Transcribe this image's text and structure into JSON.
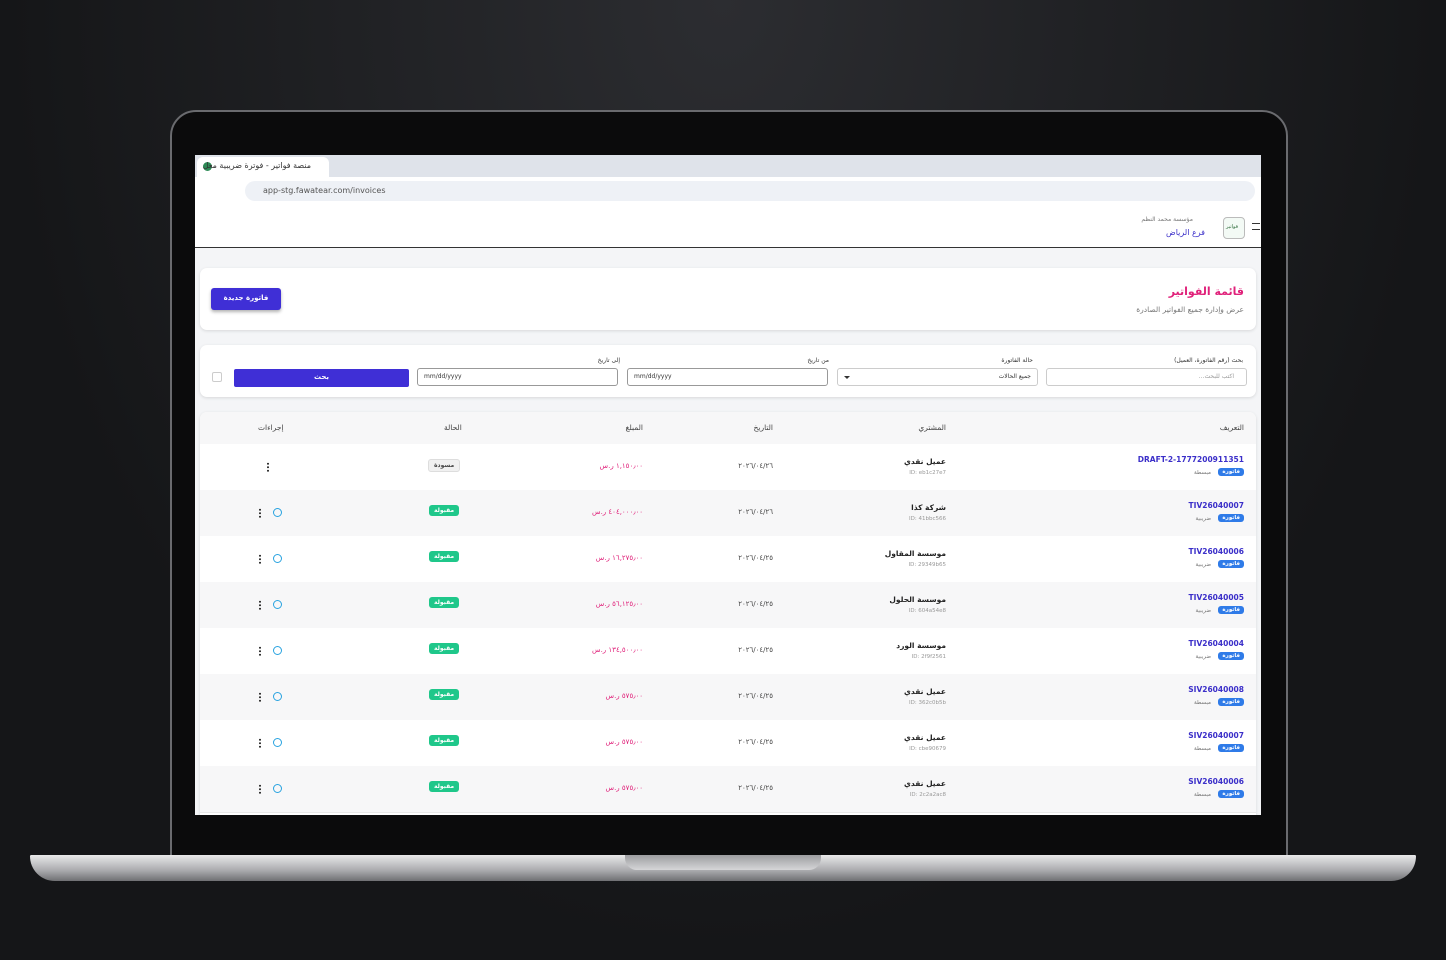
{
  "browser": {
    "tab_title": "منصة فواتير - فوترة ضريبية معل",
    "url": "app-stg.fawatear.com/invoices"
  },
  "header": {
    "logo": "فواتير",
    "company": "مؤسسة محمد النظم",
    "branch": "فرع الرياض"
  },
  "page": {
    "title": "قائمة الفواتير",
    "subtitle": "عرض وإدارة جميع الفواتير الصادرة",
    "new_button": "فاتورة جديدة"
  },
  "filters": {
    "search_label": "بحث (رقم الفاتورة، العميل)",
    "search_placeholder": "اكتب للبحث...",
    "status_label": "حالة الفاتورة",
    "status_value": "جميع الحالات",
    "from_label": "من تاريخ",
    "to_label": "إلى تاريخ",
    "date_placeholder": "mm/dd/yyyy",
    "search_button": "بحث"
  },
  "table": {
    "columns": [
      "التعريف",
      "المشتري",
      "التاريخ",
      "المبلغ",
      "الحالة",
      "إجراءات"
    ],
    "rows": [
      {
        "id": "DRAFT-2-1777200911351",
        "badge": "فاتورة",
        "kind": "مبسطة",
        "buyer": "عميل نقدي",
        "buyer_id": "ID: eb1c27e7",
        "date": "٢٠٢٦/٠٤/٢٦",
        "amount": "١,١٥٠٫٠٠ ر.س",
        "status": "مسودة"
      },
      {
        "id": "TIV26040007",
        "badge": "فاتورة",
        "kind": "ضريبية",
        "buyer": "شركة كذا",
        "buyer_id": "ID: 41bbc566",
        "date": "٢٠٢٦/٠٤/٢٦",
        "amount": "٤٠٤,٠٠٠٫٠٠ ر.س",
        "status": "مقبولة"
      },
      {
        "id": "TIV26040006",
        "badge": "فاتورة",
        "kind": "ضريبية",
        "buyer": "موسسة المقاول",
        "buyer_id": "ID: 29349b65",
        "date": "٢٠٢٦/٠٤/٢٥",
        "amount": "١٦,٢٧٥٫٠٠ ر.س",
        "status": "مقبولة"
      },
      {
        "id": "TIV26040005",
        "badge": "فاتورة",
        "kind": "ضريبية",
        "buyer": "موسسة الحلول",
        "buyer_id": "ID: 604a54e8",
        "date": "٢٠٢٦/٠٤/٢٥",
        "amount": "٥٦,١٢٥٫٠٠ ر.س",
        "status": "مقبولة"
      },
      {
        "id": "TIV26040004",
        "badge": "فاتورة",
        "kind": "ضريبية",
        "buyer": "موسسة الورد",
        "buyer_id": "ID: 2f9f2561",
        "date": "٢٠٢٦/٠٤/٢٥",
        "amount": "١٣٤,٥٠٠٫٠٠ ر.س",
        "status": "مقبولة"
      },
      {
        "id": "SIV26040008",
        "badge": "فاتورة",
        "kind": "مبسطة",
        "buyer": "عميل نقدي",
        "buyer_id": "ID: 362c0b5b",
        "date": "٢٠٢٦/٠٤/٢٥",
        "amount": "٥٧٥٫٠٠ ر.س",
        "status": "مقبولة"
      },
      {
        "id": "SIV26040007",
        "badge": "فاتورة",
        "kind": "مبسطة",
        "buyer": "عميل نقدي",
        "buyer_id": "ID: cbe90679",
        "date": "٢٠٢٦/٠٤/٢٥",
        "amount": "٥٧٥٫٠٠ ر.س",
        "status": "مقبولة"
      },
      {
        "id": "SIV26040006",
        "badge": "فاتورة",
        "kind": "مبسطة",
        "buyer": "عميل نقدي",
        "buyer_id": "ID: 2c2a2ac8",
        "date": "٢٠٢٦/٠٤/٢٥",
        "amount": "٥٧٥٫٠٠ ر.س",
        "status": "مقبولة"
      }
    ]
  }
}
